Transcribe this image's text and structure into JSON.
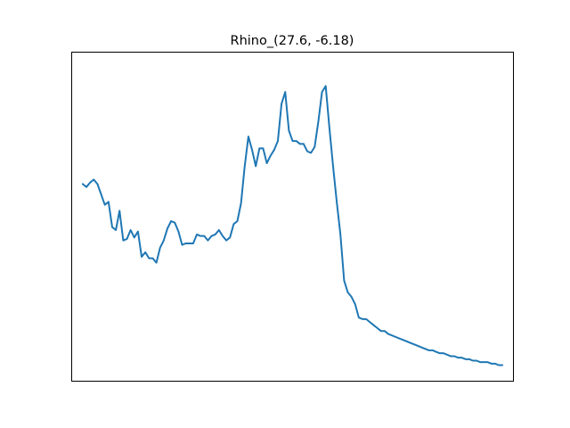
{
  "chart_data": {
    "type": "line",
    "title": "Rhino_(27.6, -6.18)",
    "xlabel": "",
    "ylabel": "",
    "xlim": [
      -3,
      117
    ],
    "ylim": [
      0,
      100
    ],
    "grid": false,
    "legend": "none",
    "axes_ticks": false,
    "colors": {
      "line": "#1f77b4",
      "axes": "#000000",
      "background": "#ffffff"
    },
    "series": [
      {
        "x": [
          0,
          1,
          2,
          3,
          4,
          5,
          6,
          7,
          8,
          9,
          10,
          11,
          12,
          13,
          14,
          15,
          16,
          17,
          18,
          19,
          20,
          21,
          22,
          23,
          24,
          25,
          26,
          27,
          28,
          29,
          30,
          31,
          32,
          33,
          34,
          35,
          36,
          37,
          38,
          39,
          40,
          41,
          42,
          43,
          44,
          45,
          46,
          47,
          48,
          49,
          50,
          51,
          52,
          53,
          54,
          55,
          56,
          57,
          58,
          59,
          60,
          61,
          62,
          63,
          64,
          65,
          66,
          67,
          68,
          69,
          70,
          71,
          72,
          73,
          74,
          75,
          76,
          77,
          78,
          79,
          80,
          81,
          82,
          83,
          84,
          85,
          86,
          87,
          88,
          89,
          90,
          91,
          92,
          93,
          94,
          95,
          96,
          97,
          98,
          99,
          100,
          101,
          102,
          103,
          104,
          105,
          106,
          107,
          108,
          109,
          110,
          111,
          112,
          113,
          114
        ],
        "y": [
          61.0,
          60.0,
          61.5,
          62.5,
          61.0,
          57.5,
          54.0,
          55.0,
          46.5,
          45.5,
          52.0,
          42.0,
          42.5,
          45.5,
          43.0,
          45.0,
          36.5,
          38.0,
          36.0,
          36.0,
          34.5,
          39.5,
          42.0,
          46.0,
          48.5,
          48.0,
          45.0,
          40.5,
          41.0,
          41.0,
          41.0,
          44.0,
          43.5,
          43.5,
          42.0,
          43.5,
          44.0,
          45.5,
          43.5,
          42.0,
          43.0,
          47.5,
          48.5,
          54.5,
          67.0,
          77.0,
          72.5,
          67.0,
          73.0,
          73.0,
          68.0,
          70.5,
          72.5,
          75.5,
          88.0,
          92.0,
          79.0,
          75.5,
          75.5,
          74.5,
          74.5,
          72.0,
          71.5,
          73.5,
          82.0,
          92.0,
          94.0,
          80.0,
          67.0,
          55.0,
          44.0,
          28.5,
          24.5,
          23.0,
          20.5,
          16.0,
          15.5,
          15.5,
          14.5,
          13.5,
          12.5,
          11.5,
          11.5,
          10.5,
          10.0,
          9.5,
          9.0,
          8.5,
          8.0,
          7.5,
          7.0,
          6.5,
          6.0,
          5.5,
          5.0,
          5.0,
          4.5,
          4.0,
          4.0,
          3.5,
          3.0,
          3.0,
          2.5,
          2.5,
          2.0,
          2.0,
          1.5,
          1.5,
          1.0,
          1.0,
          1.0,
          0.5,
          0.5,
          0.0,
          0.0
        ]
      }
    ]
  }
}
